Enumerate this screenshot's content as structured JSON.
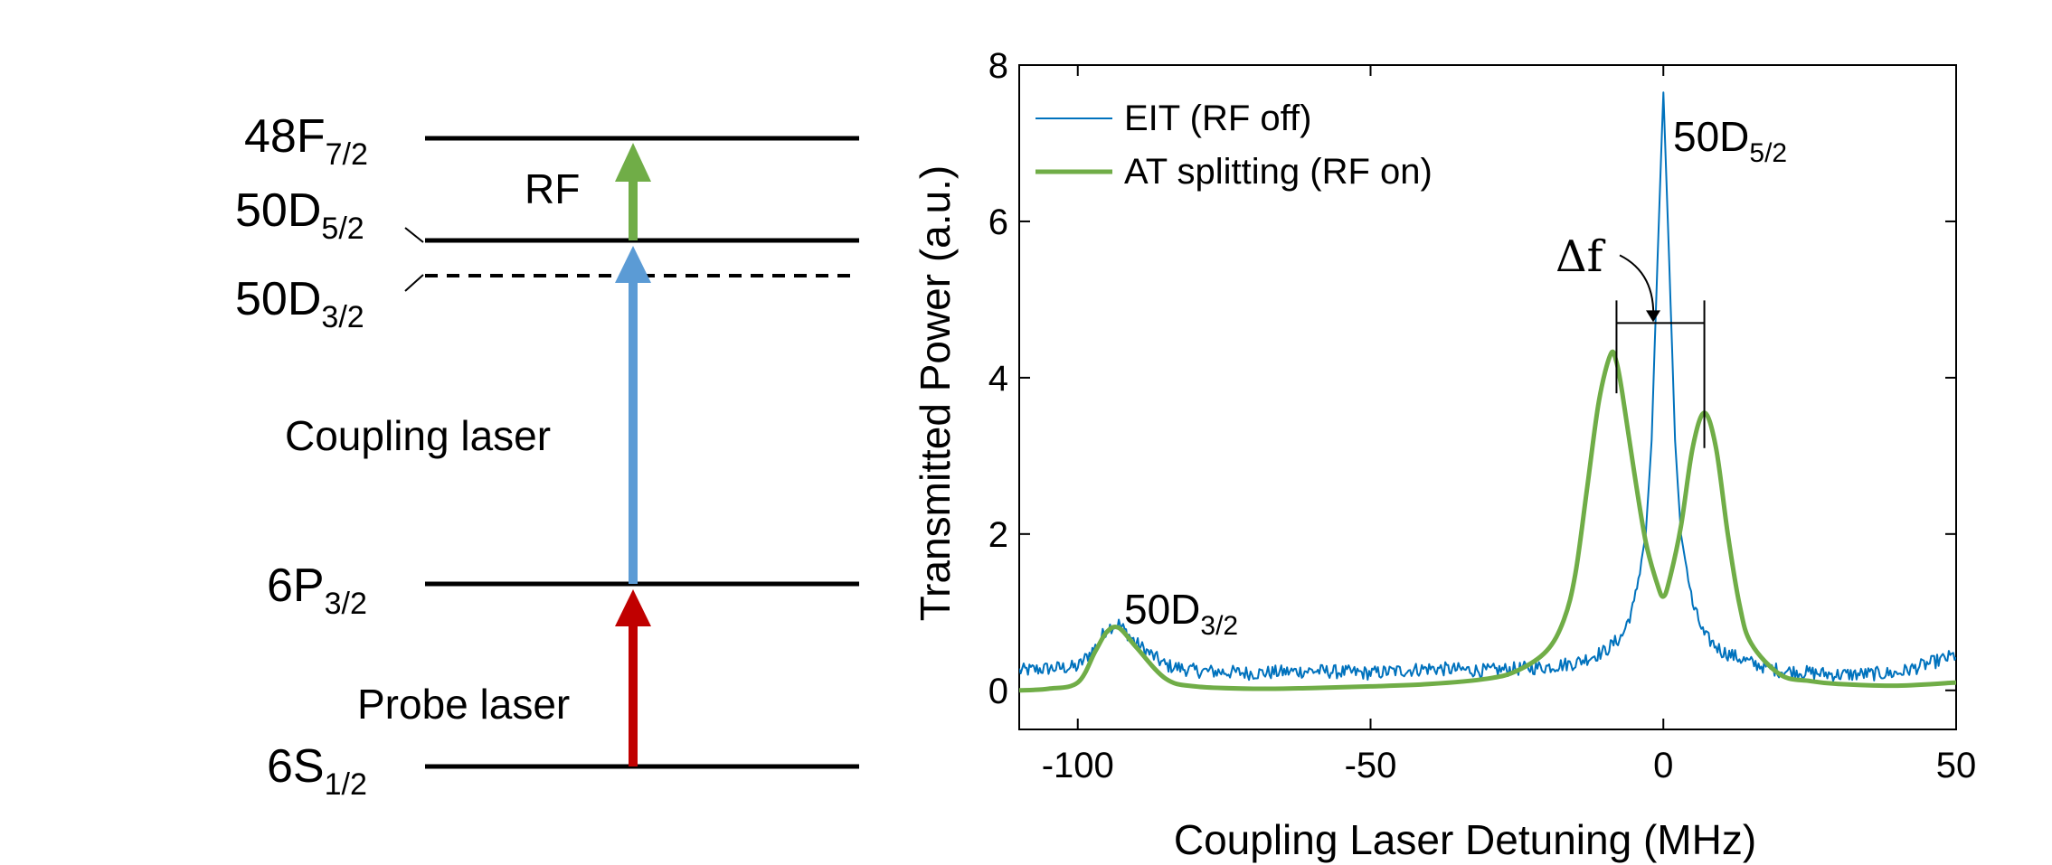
{
  "level_diagram": {
    "levels": [
      {
        "id": "48f",
        "base": "48F",
        "sub": "7/2",
        "style": "solid"
      },
      {
        "id": "50d52",
        "base": "50D",
        "sub": "5/2",
        "style": "solid"
      },
      {
        "id": "50d32",
        "base": "50D",
        "sub": "3/2",
        "style": "dashed"
      },
      {
        "id": "6p",
        "base": "6P",
        "sub": "3/2",
        "style": "solid"
      },
      {
        "id": "6s",
        "base": "6S",
        "sub": "1/2",
        "style": "solid"
      }
    ],
    "transitions": [
      {
        "label": "RF",
        "color": "#70ad47"
      },
      {
        "label": "Coupling laser",
        "color": "#5b9bd5"
      },
      {
        "label": "Probe laser",
        "color": "#c00000"
      }
    ]
  },
  "chart_data": {
    "type": "line",
    "title": "",
    "xlabel": "Coupling Laser Detuning (MHz)",
    "ylabel": "Transmitted Power (a.u.)",
    "xlim": [
      -110,
      50
    ],
    "ylim": [
      -0.5,
      8
    ],
    "xticks": [
      -100,
      -50,
      0,
      50
    ],
    "yticks": [
      0,
      2,
      4,
      6,
      8
    ],
    "xtick_labels": [
      "-100",
      "-50",
      "0",
      "50"
    ],
    "ytick_labels": [
      "0",
      "2",
      "4",
      "6",
      "8"
    ],
    "legend_position": "top-left",
    "series": [
      {
        "name": "EIT (RF off)",
        "color": "#0072bd",
        "x": [
          -110,
          -105,
          -100,
          -97,
          -95,
          -93,
          -90,
          -85,
          -80,
          -70,
          -60,
          -50,
          -40,
          -30,
          -20,
          -15,
          -10,
          -7,
          -5,
          -3,
          -2,
          -1,
          0,
          1,
          2,
          3,
          5,
          7,
          10,
          15,
          20,
          30,
          40,
          50
        ],
        "y": [
          0.25,
          0.28,
          0.3,
          0.55,
          0.8,
          0.85,
          0.6,
          0.32,
          0.25,
          0.22,
          0.25,
          0.22,
          0.28,
          0.25,
          0.3,
          0.35,
          0.5,
          0.7,
          1.1,
          2.0,
          3.2,
          5.5,
          7.65,
          5.5,
          3.2,
          2.0,
          1.1,
          0.7,
          0.5,
          0.35,
          0.25,
          0.2,
          0.22,
          0.45
        ]
      },
      {
        "name": "AT splitting (RF on)",
        "color": "#70ad47",
        "x": [
          -110,
          -105,
          -100,
          -97,
          -95,
          -93,
          -90,
          -85,
          -80,
          -70,
          -60,
          -50,
          -40,
          -30,
          -25,
          -20,
          -17,
          -15,
          -13,
          -11,
          -9,
          -8,
          -7,
          -5,
          -3,
          -1,
          0,
          1,
          3,
          5,
          7,
          9,
          11,
          13,
          15,
          20,
          25,
          30,
          40,
          50
        ],
        "y": [
          0.0,
          0.02,
          0.1,
          0.5,
          0.75,
          0.8,
          0.55,
          0.15,
          0.05,
          0.02,
          0.03,
          0.05,
          0.08,
          0.15,
          0.25,
          0.5,
          0.9,
          1.5,
          2.6,
          3.7,
          4.3,
          4.2,
          3.8,
          2.8,
          1.9,
          1.35,
          1.2,
          1.4,
          2.1,
          3.1,
          3.55,
          3.1,
          2.0,
          1.1,
          0.6,
          0.2,
          0.12,
          0.08,
          0.06,
          0.1
        ]
      }
    ],
    "annotations": [
      {
        "type": "peak",
        "base": "50D",
        "sub": "5/2"
      },
      {
        "type": "peak",
        "base": "50D",
        "sub": "3/2"
      },
      {
        "type": "splitting",
        "text": "Δf",
        "x1": -8,
        "x2": 7,
        "y": 4.7
      }
    ]
  }
}
